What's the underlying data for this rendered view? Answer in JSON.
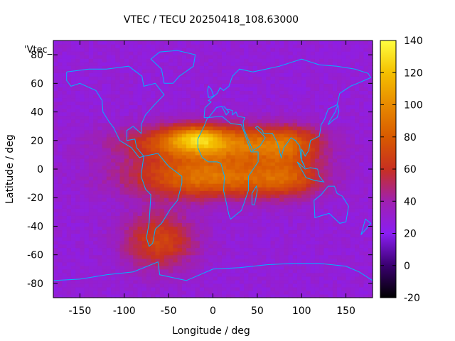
{
  "chart_data": {
    "type": "heatmap",
    "title": "VTEC / TECU 20250418_108.63000",
    "series_label": "'Vtec_",
    "xlabel": "Longitude / deg",
    "ylabel": "Latitude / deg",
    "xlim": [
      -180,
      180
    ],
    "ylim": [
      -90,
      90
    ],
    "x_ticks": [
      -150,
      -100,
      -50,
      0,
      50,
      100,
      150
    ],
    "y_ticks": [
      80,
      60,
      40,
      20,
      0,
      -20,
      -40,
      -60,
      -80
    ],
    "colorbar": {
      "range": [
        -20,
        140
      ],
      "ticks": [
        140,
        120,
        100,
        80,
        60,
        40,
        20,
        0,
        -20
      ],
      "stops": [
        {
          "value": -20,
          "color": "#000000"
        },
        {
          "value": 0,
          "color": "#3a0070"
        },
        {
          "value": 20,
          "color": "#8a1ef2"
        },
        {
          "value": 40,
          "color": "#a020b0"
        },
        {
          "value": 60,
          "color": "#c83020"
        },
        {
          "value": 80,
          "color": "#d85a00"
        },
        {
          "value": 100,
          "color": "#e88a00"
        },
        {
          "value": 120,
          "color": "#f4c000"
        },
        {
          "value": 140,
          "color": "#ffff40"
        }
      ]
    },
    "grid_resolution_deg": {
      "lon": 5,
      "lat": 2.5
    },
    "features": {
      "background_vtec": 28,
      "daytime_peak": {
        "lon": -20,
        "lat": 22,
        "vtec": 135
      },
      "anomaly_crests": [
        {
          "lon_min": -130,
          "lon_max": 120,
          "lat_center": 18,
          "peak_vtec": 95
        },
        {
          "lon_min": -130,
          "lon_max": 120,
          "lat_center": -6,
          "peak_vtec": 90
        }
      ],
      "southern_extension": {
        "lon": -60,
        "lat": -50,
        "vtec": 70
      }
    },
    "map_overlay": "coastlines"
  }
}
